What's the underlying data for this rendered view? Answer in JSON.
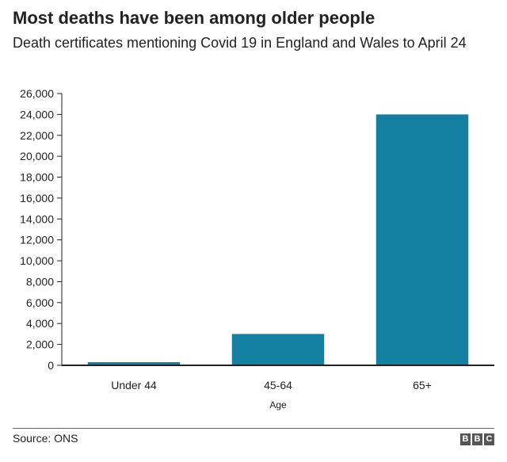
{
  "header": {
    "title": "Most deaths have been among older people",
    "subtitle": "Death certificates mentioning Covid 19 in England and Wales to April 24"
  },
  "footer": {
    "source": "Source: ONS",
    "logo": [
      "B",
      "B",
      "C"
    ]
  },
  "colors": {
    "bar": "#1380a1",
    "axis": "#222222",
    "rule": "#666666"
  },
  "chart_data": {
    "type": "bar",
    "title": "Most deaths have been among older people",
    "subtitle": "Death certificates mentioning Covid 19 in England and Wales to April 24",
    "xlabel": "Age",
    "ylabel": "",
    "categories": [
      "Under 44",
      "45-64",
      "65+"
    ],
    "values": [
      300,
      3000,
      24000
    ],
    "ylim": [
      0,
      26000
    ],
    "yticks": [
      0,
      2000,
      4000,
      6000,
      8000,
      10000,
      12000,
      14000,
      16000,
      18000,
      20000,
      22000,
      24000,
      26000
    ],
    "ytick_labels": [
      "0",
      "2,000",
      "4,000",
      "6,000",
      "8,000",
      "10,000",
      "12,000",
      "14,000",
      "16,000",
      "18,000",
      "20,000",
      "22,000",
      "24,000",
      "26,000"
    ],
    "grid": false,
    "legend": "none"
  }
}
